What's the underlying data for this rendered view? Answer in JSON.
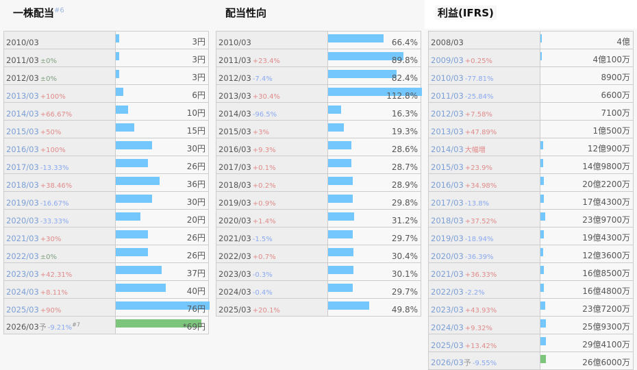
{
  "colors": {
    "bar": "#74c7fc",
    "forecast_bar": "#7dc57d",
    "up": "#e08a8a",
    "down": "#8aa8f0",
    "flat": "#80a080"
  },
  "panels": [
    {
      "title": "一株配当",
      "note": "#6",
      "rows": [
        {
          "year": "2010/03",
          "change": "",
          "value": "3円",
          "bar": 0.04
        },
        {
          "year": "2011/03",
          "change": "±0%",
          "value": "3円",
          "bar": 0.04
        },
        {
          "year": "2012/03",
          "change": "±0%",
          "value": "3円",
          "bar": 0.04
        },
        {
          "year": "2013/03",
          "change": "+100%",
          "value": "6円",
          "bar": 0.08,
          "link": true
        },
        {
          "year": "2014/03",
          "change": "+66.67%",
          "value": "10円",
          "bar": 0.13,
          "link": true
        },
        {
          "year": "2015/03",
          "change": "+50%",
          "value": "15円",
          "bar": 0.2,
          "link": true
        },
        {
          "year": "2016/03",
          "change": "+100%",
          "value": "30円",
          "bar": 0.39,
          "link": true
        },
        {
          "year": "2017/03",
          "change": "-13.33%",
          "value": "26円",
          "bar": 0.34,
          "link": true
        },
        {
          "year": "2018/03",
          "change": "+38.46%",
          "value": "36円",
          "bar": 0.47,
          "link": true
        },
        {
          "year": "2019/03",
          "change": "-16.67%",
          "value": "30円",
          "bar": 0.39,
          "link": true
        },
        {
          "year": "2020/03",
          "change": "-33.33%",
          "value": "20円",
          "bar": 0.26,
          "link": true
        },
        {
          "year": "2021/03",
          "change": "+30%",
          "value": "26円",
          "bar": 0.34,
          "link": true
        },
        {
          "year": "2022/03",
          "change": "±0%",
          "value": "26円",
          "bar": 0.34,
          "link": true
        },
        {
          "year": "2023/03",
          "change": "+42.31%",
          "value": "37円",
          "bar": 0.49,
          "link": true
        },
        {
          "year": "2024/03",
          "change": "+8.11%",
          "value": "40円",
          "bar": 0.53,
          "link": true
        },
        {
          "year": "2025/03",
          "change": "+90%",
          "value": "76円",
          "bar": 1.0,
          "link": true
        },
        {
          "year": "2026/03",
          "forecast": "予",
          "change": "-9.21%",
          "note": "#7",
          "value": "*69円",
          "bar": 0.91
        }
      ]
    },
    {
      "title": "配当性向",
      "rows": [
        {
          "year": "2010/03",
          "change": "",
          "value": "66.4%",
          "bar": 0.59
        },
        {
          "year": "2011/03",
          "change": "+23.4%",
          "value": "89.8%",
          "bar": 0.8
        },
        {
          "year": "2012/03",
          "change": "-7.4%",
          "value": "82.4%",
          "bar": 0.73
        },
        {
          "year": "2013/03",
          "change": "+30.4%",
          "value": "112.8%",
          "bar": 1.0
        },
        {
          "year": "2014/03",
          "change": "-96.5%",
          "value": "16.3%",
          "bar": 0.14
        },
        {
          "year": "2015/03",
          "change": "+3%",
          "value": "19.3%",
          "bar": 0.17
        },
        {
          "year": "2016/03",
          "change": "+9.3%",
          "value": "28.6%",
          "bar": 0.25
        },
        {
          "year": "2017/03",
          "change": "+0.1%",
          "value": "28.7%",
          "bar": 0.25
        },
        {
          "year": "2018/03",
          "change": "+0.2%",
          "value": "28.9%",
          "bar": 0.26
        },
        {
          "year": "2019/03",
          "change": "+0.9%",
          "value": "29.8%",
          "bar": 0.26
        },
        {
          "year": "2020/03",
          "change": "+1.4%",
          "value": "31.2%",
          "bar": 0.28
        },
        {
          "year": "2021/03",
          "change": "-1.5%",
          "value": "29.7%",
          "bar": 0.26
        },
        {
          "year": "2022/03",
          "change": "+0.7%",
          "value": "30.4%",
          "bar": 0.27
        },
        {
          "year": "2023/03",
          "change": "-0.3%",
          "value": "30.1%",
          "bar": 0.27
        },
        {
          "year": "2024/03",
          "change": "-0.4%",
          "value": "29.7%",
          "bar": 0.26
        },
        {
          "year": "2025/03",
          "change": "+20.1%",
          "value": "49.8%",
          "bar": 0.44
        }
      ]
    },
    {
      "title": "利益(IFRS)",
      "rows": [
        {
          "year": "2008/03",
          "change": "",
          "value": "4億",
          "bar": 0.005
        },
        {
          "year": "2009/03",
          "change": "+0.25%",
          "value": "4億100万",
          "bar": 0.005,
          "link": true
        },
        {
          "year": "2010/03",
          "change": "-77.81%",
          "value": "8900万",
          "bar": 0,
          "link": true
        },
        {
          "year": "2011/03",
          "change": "-25.84%",
          "value": "6600万",
          "bar": 0,
          "link": true
        },
        {
          "year": "2012/03",
          "change": "+7.58%",
          "value": "7100万",
          "bar": 0,
          "link": true
        },
        {
          "year": "2013/03",
          "change": "+47.89%",
          "value": "1億500万",
          "bar": 0,
          "link": true
        },
        {
          "year": "2014/03",
          "change": "大幅増",
          "value": "12億900万",
          "bar": 0.03,
          "link": true
        },
        {
          "year": "2015/03",
          "change": "+23.9%",
          "value": "14億9800万",
          "bar": 0.03,
          "link": true
        },
        {
          "year": "2016/03",
          "change": "+34.98%",
          "value": "20億2200万",
          "bar": 0.04,
          "link": true
        },
        {
          "year": "2017/03",
          "change": "-13.8%",
          "value": "17億4300万",
          "bar": 0.04,
          "link": true
        },
        {
          "year": "2018/03",
          "change": "+37.52%",
          "value": "23億9700万",
          "bar": 0.05,
          "link": true
        },
        {
          "year": "2019/03",
          "change": "-18.94%",
          "value": "19億4300万",
          "bar": 0.04,
          "link": true
        },
        {
          "year": "2020/03",
          "change": "-36.39%",
          "value": "12億3600万",
          "bar": 0.03,
          "link": true
        },
        {
          "year": "2021/03",
          "change": "+36.33%",
          "value": "16億8500万",
          "bar": 0.04,
          "link": true
        },
        {
          "year": "2022/03",
          "change": "-2.2%",
          "value": "16億4800万",
          "bar": 0.04,
          "link": true
        },
        {
          "year": "2023/03",
          "change": "+43.93%",
          "value": "23億7200万",
          "bar": 0.05,
          "link": true
        },
        {
          "year": "2024/03",
          "change": "+9.32%",
          "value": "25億9300万",
          "bar": 0.06,
          "link": true
        },
        {
          "year": "2025/03",
          "change": "+13.42%",
          "value": "29億4100万",
          "bar": 0.06,
          "link": true
        },
        {
          "year": "2026/03",
          "forecast": "予",
          "change": "-9.55%",
          "value": "26億6000万",
          "bar": 0.06,
          "link": true
        }
      ]
    }
  ]
}
